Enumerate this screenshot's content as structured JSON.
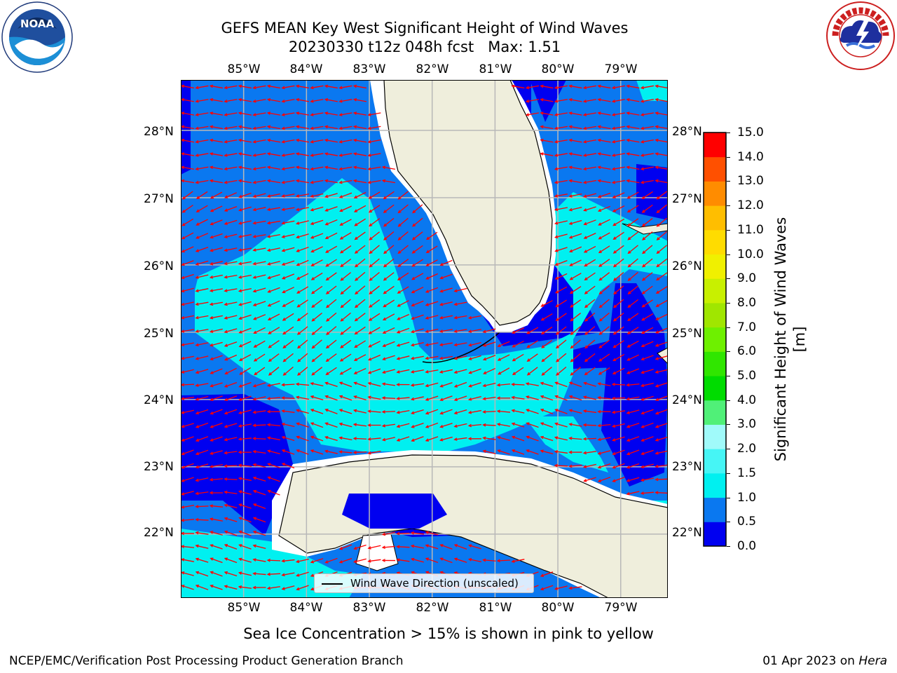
{
  "title": {
    "line1": "GEFS MEAN Key West Significant Height of Wind Waves",
    "line2": "20230330 t12z 048h fcst   Max: 1.51"
  },
  "map": {
    "lon_labels": [
      "85°W",
      "84°W",
      "83°W",
      "82°W",
      "81°W",
      "80°W",
      "79°W"
    ],
    "lat_labels": [
      "28°N",
      "27°N",
      "26°N",
      "25°N",
      "24°N",
      "23°N",
      "22°N"
    ],
    "lon_range": [
      -86.0,
      -78.25
    ],
    "lat_range": [
      21.05,
      28.75
    ],
    "colors": {
      "land": "#efeedc",
      "ocean_dark": "#0000f0",
      "ocean_mid": "#0a78f0",
      "ocean_light": "#00f0f0",
      "gridline": "#b8b8b8",
      "arrow": "#ff0000",
      "coast": "#000000"
    },
    "legend": "Wind Wave Direction (unscaled)"
  },
  "colorbar": {
    "label": "Significant Height of Wind Waves [m]",
    "ticks": [
      "0.0",
      "0.5",
      "1.0",
      "1.5",
      "2.0",
      "3.0",
      "4.0",
      "5.0",
      "6.0",
      "7.0",
      "8.0",
      "9.0",
      "10.0",
      "11.0",
      "12.0",
      "13.0",
      "14.0",
      "15.0"
    ],
    "colors": [
      "#0000f0",
      "#0a78f0",
      "#00f0f0",
      "#46f5f5",
      "#a0fafa",
      "#50f078",
      "#00dc00",
      "#30e600",
      "#6ef000",
      "#a0e600",
      "#c8f000",
      "#f0f000",
      "#ffdc00",
      "#ffbe00",
      "#ff8c00",
      "#ff5000",
      "#ff0000"
    ]
  },
  "footer": {
    "note": "Sea Ice Concentration > 15% is shown in pink to yellow",
    "left": "NCEP/EMC/Verification Post Processing Product Generation Branch",
    "right_date": "01 Apr 2023 on ",
    "right_machine": "Hera"
  },
  "logos": {
    "noaa_icon": "noaa-logo-icon",
    "nws_icon": "nws-logo-icon"
  }
}
